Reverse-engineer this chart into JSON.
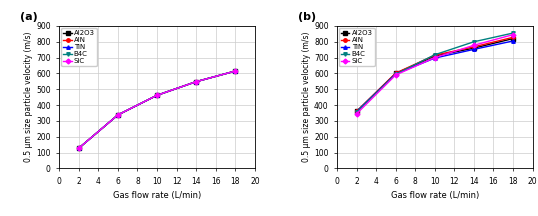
{
  "x": [
    2,
    6,
    10,
    14,
    18
  ],
  "panel_a": {
    "title": "(a)",
    "materials": [
      "Al2O3",
      "AlN",
      "TiN",
      "B4C",
      "SiC"
    ],
    "colors": [
      "#000000",
      "#ff0000",
      "#0000ff",
      "#008080",
      "#ff00ff"
    ],
    "markers": [
      "s",
      "o",
      "^",
      "v",
      "D"
    ],
    "data": {
      "Al2O3": [
        128,
        338,
        462,
        548,
        615
      ],
      "AlN": [
        128,
        338,
        462,
        548,
        615
      ],
      "TiN": [
        128,
        338,
        462,
        548,
        615
      ],
      "B4C": [
        128,
        338,
        462,
        548,
        615
      ],
      "SiC": [
        128,
        338,
        462,
        548,
        615
      ]
    }
  },
  "panel_b": {
    "title": "(b)",
    "materials": [
      "Al2O3",
      "AlN",
      "TiN",
      "B4C",
      "SiC"
    ],
    "colors": [
      "#000000",
      "#ff0000",
      "#0000ff",
      "#008080",
      "#ff00ff"
    ],
    "markers": [
      "s",
      "o",
      "^",
      "v",
      "D"
    ],
    "data": {
      "Al2O3": [
        360,
        600,
        710,
        760,
        820
      ],
      "AlN": [
        360,
        602,
        715,
        768,
        828
      ],
      "TiN": [
        358,
        597,
        697,
        752,
        805
      ],
      "B4C": [
        355,
        595,
        718,
        800,
        855
      ],
      "SiC": [
        345,
        590,
        700,
        778,
        845
      ]
    }
  },
  "xlabel": "Gas flow rate (L/min)",
  "ylabel": "0.5 μm size particle velocity (m/s)",
  "xlim": [
    0,
    20
  ],
  "ylim": [
    0,
    900
  ],
  "yticks": [
    0,
    100,
    200,
    300,
    400,
    500,
    600,
    700,
    800,
    900
  ],
  "xticks": [
    0,
    2,
    4,
    6,
    8,
    10,
    12,
    14,
    16,
    18,
    20
  ],
  "xtick_labels": [
    "0",
    "2",
    "4",
    "6",
    "8",
    "10",
    "12",
    "14",
    "16",
    "18",
    "20"
  ],
  "background_color": "#ffffff",
  "grid_color": "#cccccc"
}
